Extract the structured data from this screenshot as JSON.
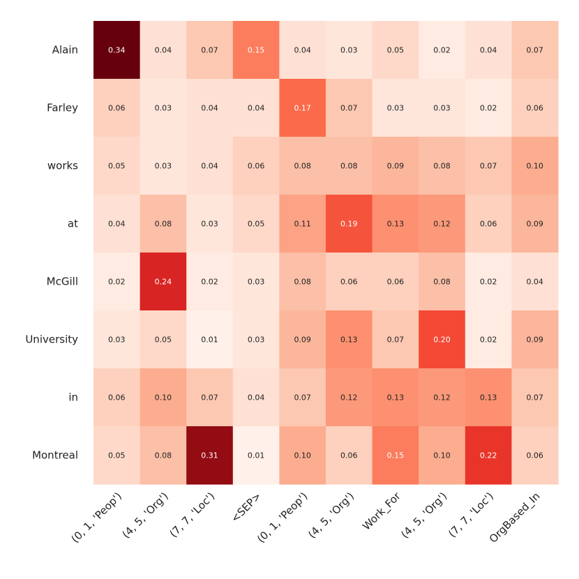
{
  "chart_data": {
    "type": "heatmap",
    "title": "",
    "xlabel": "",
    "ylabel": "",
    "colormap": "Reds",
    "value_range": [
      0,
      0.34
    ],
    "rows": [
      "Alain",
      "Farley",
      "works",
      "at",
      "McGill",
      "University",
      "in",
      "Montreal"
    ],
    "columns": [
      "(0, 1, 'Peop')",
      "(4, 5, 'Org')",
      "(7, 7, 'Loc')",
      "<SEP>",
      "(0, 1, 'Peop')",
      "(4, 5, 'Org')",
      "Work_For",
      "(4, 5, 'Org')",
      "(7, 7, 'Loc')",
      "OrgBased_In"
    ],
    "values": [
      [
        0.34,
        0.04,
        0.07,
        0.15,
        0.04,
        0.03,
        0.05,
        0.02,
        0.04,
        0.07
      ],
      [
        0.06,
        0.03,
        0.04,
        0.04,
        0.17,
        0.07,
        0.03,
        0.03,
        0.02,
        0.06
      ],
      [
        0.05,
        0.03,
        0.04,
        0.06,
        0.08,
        0.08,
        0.09,
        0.08,
        0.07,
        0.1
      ],
      [
        0.04,
        0.08,
        0.03,
        0.05,
        0.11,
        0.19,
        0.13,
        0.12,
        0.06,
        0.09
      ],
      [
        0.02,
        0.24,
        0.02,
        0.03,
        0.08,
        0.06,
        0.06,
        0.08,
        0.02,
        0.04
      ],
      [
        0.03,
        0.05,
        0.01,
        0.03,
        0.09,
        0.13,
        0.07,
        0.2,
        0.02,
        0.09
      ],
      [
        0.06,
        0.1,
        0.07,
        0.04,
        0.07,
        0.12,
        0.13,
        0.12,
        0.13,
        0.07
      ],
      [
        0.05,
        0.08,
        0.31,
        0.01,
        0.1,
        0.06,
        0.15,
        0.1,
        0.22,
        0.06
      ]
    ]
  }
}
